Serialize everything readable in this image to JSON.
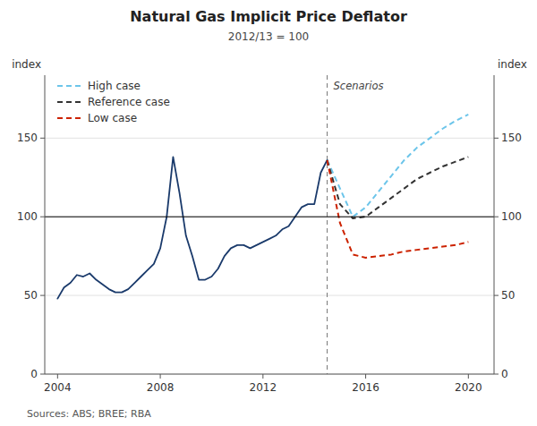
{
  "chart_data": {
    "type": "line",
    "title": "Natural Gas Implicit Price Deflator",
    "subtitle": "2012/13 = 100",
    "y_label": "index",
    "y2_label": "index",
    "source": "Sources:  ABS; BREE; RBA",
    "annotations": [
      "Scenarios"
    ],
    "xlim": [
      2003.5,
      2021.0
    ],
    "xticks": [
      2004,
      2008,
      2012,
      2016,
      2020
    ],
    "ylim": [
      0,
      190
    ],
    "yticks": [
      0,
      50,
      100,
      150
    ],
    "y2lim": [
      0,
      190
    ],
    "y2ticks": [
      0,
      50,
      100,
      150
    ],
    "grid": true,
    "legend": "upper left",
    "hline": 100,
    "vline": 2014.5,
    "series": [
      {
        "color": "#1a3a6b",
        "line_style": "solid",
        "x": [
          2004.0,
          2004.25,
          2004.5,
          2004.75,
          2005.0,
          2005.25,
          2005.5,
          2005.75,
          2006.0,
          2006.25,
          2006.5,
          2006.75,
          2007.0,
          2007.25,
          2007.5,
          2007.75,
          2008.0,
          2008.25,
          2008.5,
          2008.75,
          2009.0,
          2009.25,
          2009.5,
          2009.75,
          2010.0,
          2010.25,
          2010.5,
          2010.75,
          2011.0,
          2011.25,
          2011.5,
          2011.75,
          2012.0,
          2012.25,
          2012.5,
          2012.75,
          2013.0,
          2013.25,
          2013.5,
          2013.75,
          2014.0,
          2014.25,
          2014.5
        ],
        "values": [
          48,
          55,
          58,
          63,
          62,
          64,
          60,
          57,
          54,
          52,
          52,
          54,
          58,
          62,
          66,
          70,
          80,
          100,
          138,
          115,
          88,
          75,
          60,
          60,
          62,
          67,
          75,
          80,
          82,
          82,
          80,
          82,
          84,
          86,
          88,
          92,
          94,
          100,
          106,
          108,
          108,
          128,
          136
        ]
      },
      {
        "name": "High case",
        "color": "#6cc5ea",
        "line_style": "dashed",
        "x": [
          2014.5,
          2015.0,
          2015.5,
          2016.0,
          2016.5,
          2017.0,
          2017.5,
          2018.0,
          2018.5,
          2019.0,
          2019.5,
          2020.0
        ],
        "values": [
          136,
          118,
          100,
          106,
          116,
          126,
          136,
          144,
          150,
          156,
          161,
          165
        ]
      },
      {
        "name": "Reference case",
        "color": "#333333",
        "line_style": "dashed",
        "x": [
          2014.5,
          2015.0,
          2015.5,
          2016.0,
          2016.5,
          2017.0,
          2017.5,
          2018.0,
          2018.5,
          2019.0,
          2019.5,
          2020.0
        ],
        "values": [
          136,
          108,
          99,
          100,
          106,
          112,
          118,
          124,
          128,
          132,
          135,
          138
        ]
      },
      {
        "name": "Low case",
        "color": "#cc2200",
        "line_style": "dashed",
        "x": [
          2014.5,
          2015.0,
          2015.5,
          2016.0,
          2016.5,
          2017.0,
          2017.5,
          2018.0,
          2018.5,
          2019.0,
          2019.5,
          2020.0
        ],
        "values": [
          136,
          96,
          76,
          74,
          75,
          76,
          78,
          79,
          80,
          81,
          82,
          84
        ]
      }
    ]
  }
}
